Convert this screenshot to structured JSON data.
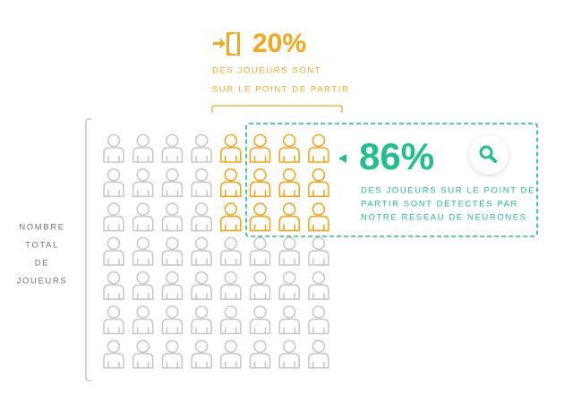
{
  "top_stat": {
    "value": "20%",
    "lines": [
      "DES JOUEURS SONT",
      "SUR LE POINT DE PARTIR"
    ]
  },
  "detection_stat": {
    "value": "86%",
    "lines": [
      "DES JOUEURS SUR LE POINT DE",
      "PARTIR SONT DÉTECTÉS PAR",
      "NOTRE RÉSEAU DE NEURONES"
    ]
  },
  "side_label": [
    "NOMBRE",
    "TOTAL",
    "DE",
    "JOUEURS"
  ]
}
